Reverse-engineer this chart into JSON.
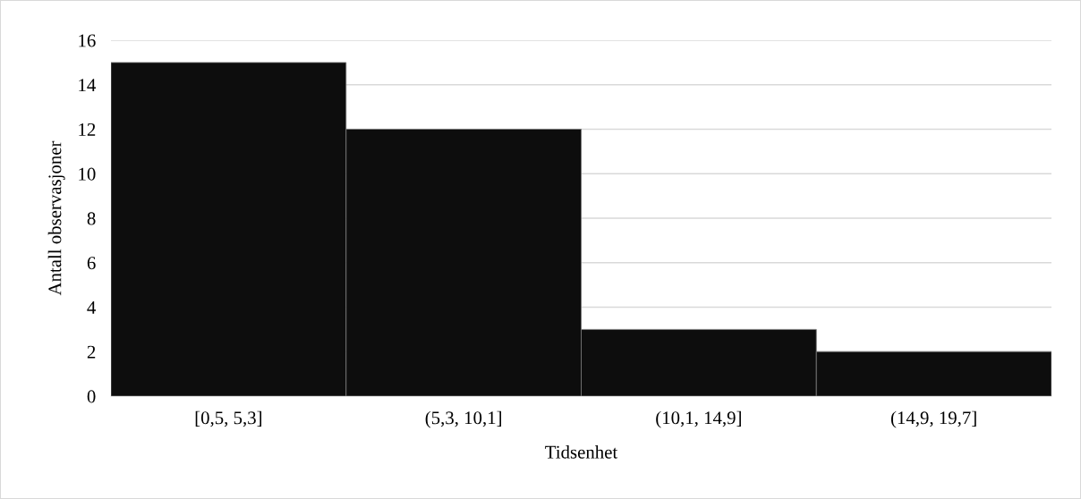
{
  "chart_data": {
    "type": "bar",
    "xlabel": "Tidsenhet",
    "ylabel": "Antall observasjoner",
    "categories": [
      "[0,5, 5,3]",
      "(5,3, 10,1]",
      "(10,1, 14,9]",
      "(14,9, 19,7]"
    ],
    "values": [
      15,
      12,
      3,
      2
    ],
    "color": "#0d0d0d",
    "ylim": [
      0,
      16
    ],
    "yticks": [
      0,
      2,
      4,
      6,
      8,
      10,
      12,
      14,
      16
    ],
    "grid": "y"
  }
}
